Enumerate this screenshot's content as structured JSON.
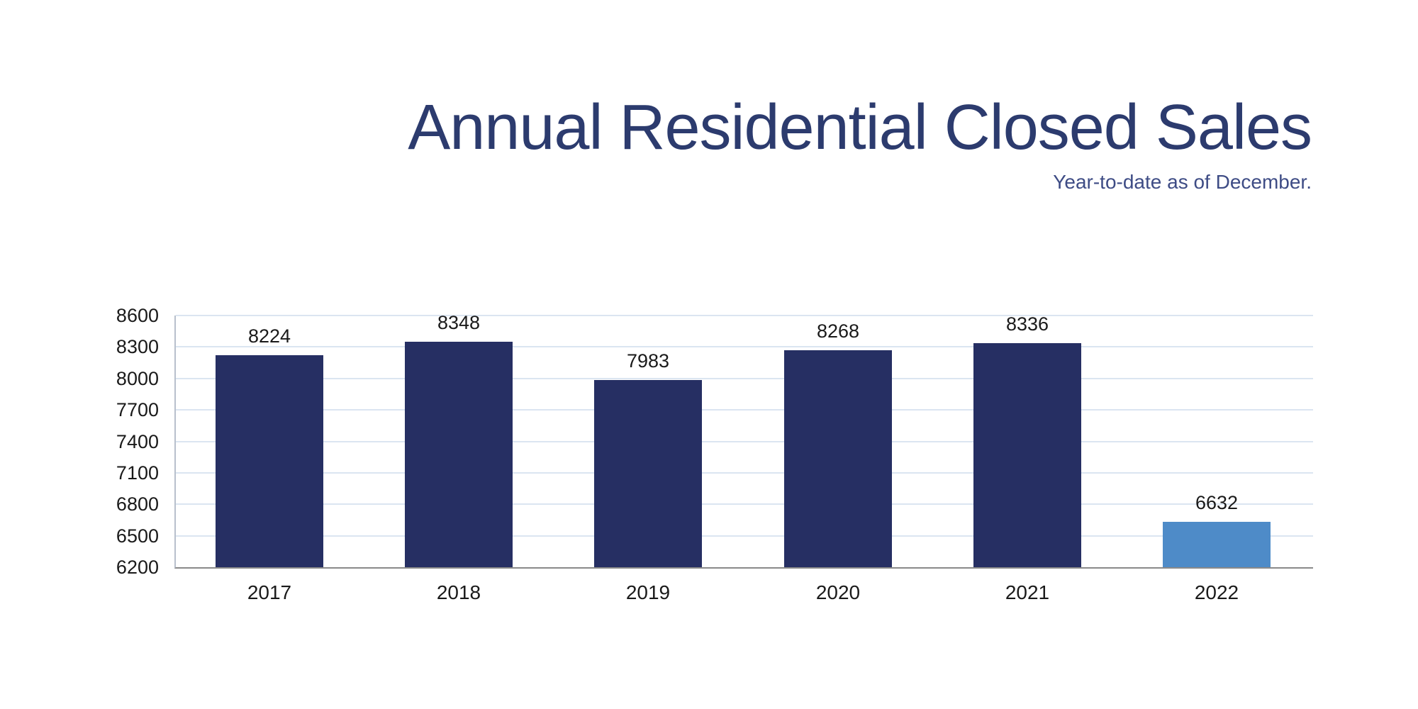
{
  "title": "Annual Residential Closed Sales",
  "subtitle": "Year-to-date as of December.",
  "colors": {
    "background": "#ffffff",
    "bar_primary": "#262f63",
    "bar_highlight": "#4e8bc8",
    "title_text": "#2c3b6e",
    "subtitle_text": "#3e4c85",
    "axis_text": "#1a1a1a",
    "gridline": "#dbe5f1",
    "axis_line_bottom": "#8a8a8a",
    "axis_line_left": "#b8c0cc"
  },
  "chart_data": {
    "type": "bar",
    "title": "Annual Residential Closed Sales",
    "subtitle": "Year-to-date as of December.",
    "categories": [
      "2017",
      "2018",
      "2019",
      "2020",
      "2021",
      "2022"
    ],
    "series": [
      {
        "name": "Annual Residential Closed Sales",
        "values": [
          8224,
          8348,
          7983,
          8268,
          8336,
          6632
        ]
      }
    ],
    "bar_colors": [
      "#262f63",
      "#262f63",
      "#262f63",
      "#262f63",
      "#262f63",
      "#4e8bc8"
    ],
    "y_ticks": [
      8600,
      8300,
      8000,
      7700,
      7400,
      7100,
      6800,
      6500,
      6200
    ],
    "ylim": [
      6200,
      8600
    ],
    "xlabel": "",
    "ylabel": "",
    "grid": true,
    "legend_position": "none",
    "data_labels": true
  }
}
